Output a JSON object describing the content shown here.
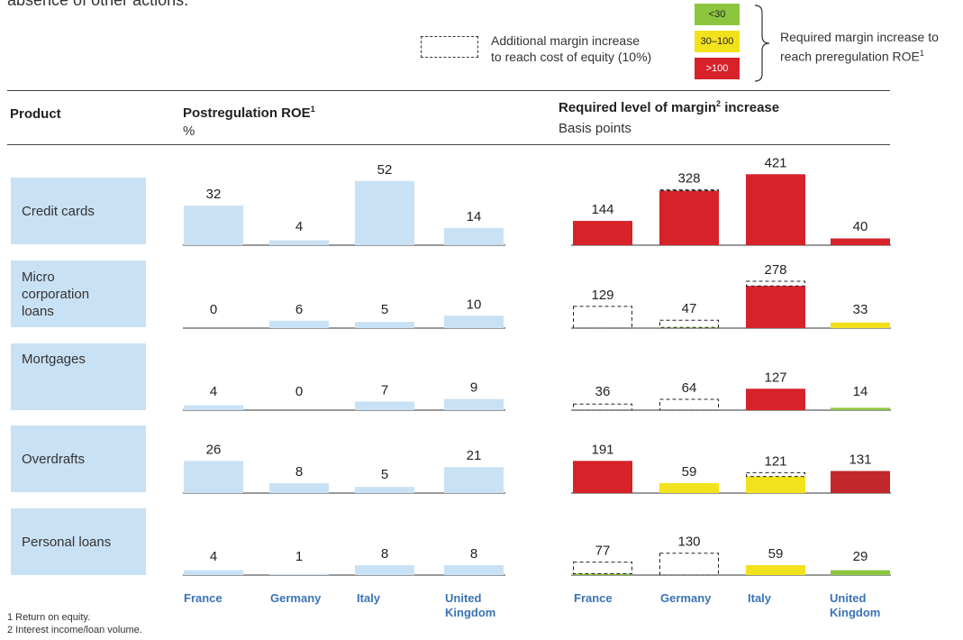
{
  "intro_text": "absence of other actions.",
  "legend": {
    "dashed_label_line1": "Additional margin increase",
    "dashed_label_line2": "to reach cost of equity (10%)",
    "bands": [
      {
        "label": "<30",
        "color": "#8cc63f",
        "text_color": "#222"
      },
      {
        "label": "30–100",
        "color": "#f2e21c",
        "text_color": "#222"
      },
      {
        "label": ">100",
        "color": "#d8222a",
        "text_color": "#ffffff"
      }
    ],
    "band_label_line1": "Required margin increase to",
    "band_label_line2": "reach preregulation ROE",
    "band_label_sup": "1"
  },
  "headers": {
    "product": "Product",
    "roe_title": "Postregulation ROE",
    "roe_sup": "1",
    "roe_unit": "%",
    "margin_title_a": "Required level of margin",
    "margin_sup": "2",
    "margin_title_b": " increase",
    "margin_unit": "Basis points"
  },
  "products": [
    {
      "label": "Credit cards"
    },
    {
      "label": "Micro corporation loans"
    },
    {
      "label": "Mortgages"
    },
    {
      "label": "Overdrafts"
    },
    {
      "label": "Personal loans"
    }
  ],
  "countries": [
    "France",
    "Germany",
    "Italy",
    "United Kingdom"
  ],
  "footnotes": [
    "1 Return on equity.",
    "2 Interest income/loan volume."
  ],
  "chart_data": [
    {
      "type": "bar",
      "title": "Postregulation ROE",
      "ylabel": "%",
      "categories": [
        "France",
        "Germany",
        "Italy",
        "United Kingdom"
      ],
      "bar_color": "#c9e1f4",
      "series": [
        {
          "name": "Credit cards",
          "values": [
            32,
            4,
            52,
            14
          ]
        },
        {
          "name": "Micro corporation loans",
          "values": [
            0,
            6,
            5,
            10
          ]
        },
        {
          "name": "Mortgages",
          "values": [
            4,
            0,
            7,
            9
          ]
        },
        {
          "name": "Overdrafts",
          "values": [
            26,
            8,
            5,
            21
          ]
        },
        {
          "name": "Personal loans",
          "values": [
            4,
            1,
            8,
            8
          ]
        }
      ]
    },
    {
      "type": "bar",
      "title": "Required level of margin increase",
      "ylabel": "Basis points",
      "categories": [
        "France",
        "Germany",
        "Italy",
        "United Kingdom"
      ],
      "colors": {
        "green": "#8cc63f",
        "yellow": "#f2e21c",
        "red": "#d8222a",
        "darkred": "#c0282a"
      },
      "series": [
        {
          "name": "Credit cards",
          "values": [
            144,
            328,
            421,
            40
          ],
          "solid": [
            144,
            323,
            421,
            40
          ],
          "solid_color": [
            "red",
            "red",
            "red",
            "red"
          ]
        },
        {
          "name": "Micro corporation loans",
          "values": [
            129,
            47,
            278,
            33
          ],
          "solid": [
            0,
            4,
            250,
            33
          ],
          "solid_color": [
            "red",
            "green",
            "red",
            "yellow"
          ]
        },
        {
          "name": "Mortgages",
          "values": [
            36,
            64,
            127,
            14
          ],
          "solid": [
            0,
            0,
            127,
            14
          ],
          "solid_color": [
            "red",
            "red",
            "red",
            "green"
          ]
        },
        {
          "name": "Overdrafts",
          "values": [
            191,
            59,
            121,
            131
          ],
          "solid": [
            191,
            59,
            98,
            131
          ],
          "solid_color": [
            "red",
            "yellow",
            "yellow",
            "darkred"
          ]
        },
        {
          "name": "Personal loans",
          "values": [
            77,
            130,
            59,
            29
          ],
          "solid": [
            8,
            0,
            59,
            29
          ],
          "solid_color": [
            "green",
            "green",
            "yellow",
            "green"
          ]
        }
      ]
    }
  ]
}
